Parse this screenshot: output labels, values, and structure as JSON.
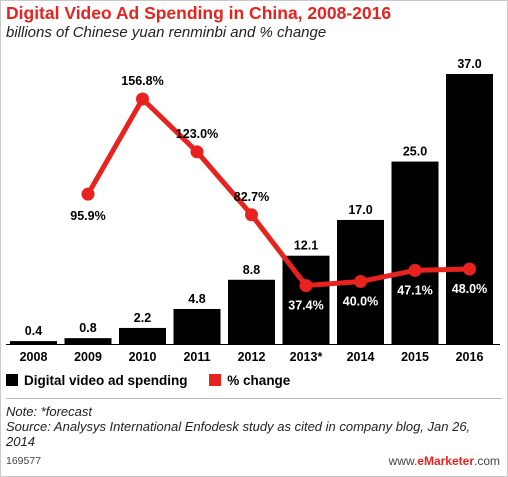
{
  "header": {
    "title": "Digital Video Ad Spending in China, 2008-2016",
    "subtitle": "billions of Chinese yuan renminbi and % change"
  },
  "legend": {
    "bars_label": "Digital video ad spending",
    "line_label": "% change"
  },
  "footer": {
    "note": "Note: *forecast",
    "source": "Source: Analysys International Enfodesk study as cited in company blog, Jan 26, 2014",
    "chart_id": "169577",
    "brand_prefix": "www.",
    "brand_name": "eMarketer",
    "brand_suffix": ".com"
  },
  "colors": {
    "bar": "#000000",
    "line": "#e8231f",
    "title": "#e8231f"
  },
  "chart_data": {
    "type": "bar",
    "title": "Digital Video Ad Spending in China, 2008-2016",
    "subtitle": "billions of Chinese yuan renminbi and % change",
    "categories": [
      "2008",
      "2009",
      "2010",
      "2011",
      "2012",
      "2013*",
      "2014",
      "2015",
      "2016"
    ],
    "series": [
      {
        "name": "Digital video ad spending",
        "type": "bar",
        "values": [
          0.4,
          0.8,
          2.2,
          4.8,
          8.8,
          12.1,
          17.0,
          25.0,
          37.0
        ],
        "labels": [
          "0.4",
          "0.8",
          "2.2",
          "4.8",
          "8.8",
          "12.1",
          "17.0",
          "25.0",
          "37.0"
        ],
        "color": "#000000"
      },
      {
        "name": "% change",
        "type": "line",
        "values": [
          null,
          95.9,
          156.8,
          123.0,
          82.7,
          37.4,
          40.0,
          47.1,
          48.0
        ],
        "labels": [
          "",
          "95.9%",
          "156.8%",
          "123.0%",
          "82.7%",
          "37.4%",
          "40.0%",
          "47.1%",
          "48.0%"
        ],
        "color": "#e8231f"
      }
    ],
    "bar_ylim": [
      0,
      37
    ],
    "line_ylim": [
      0,
      160
    ],
    "grid": false,
    "legend_position": "bottom-left"
  }
}
